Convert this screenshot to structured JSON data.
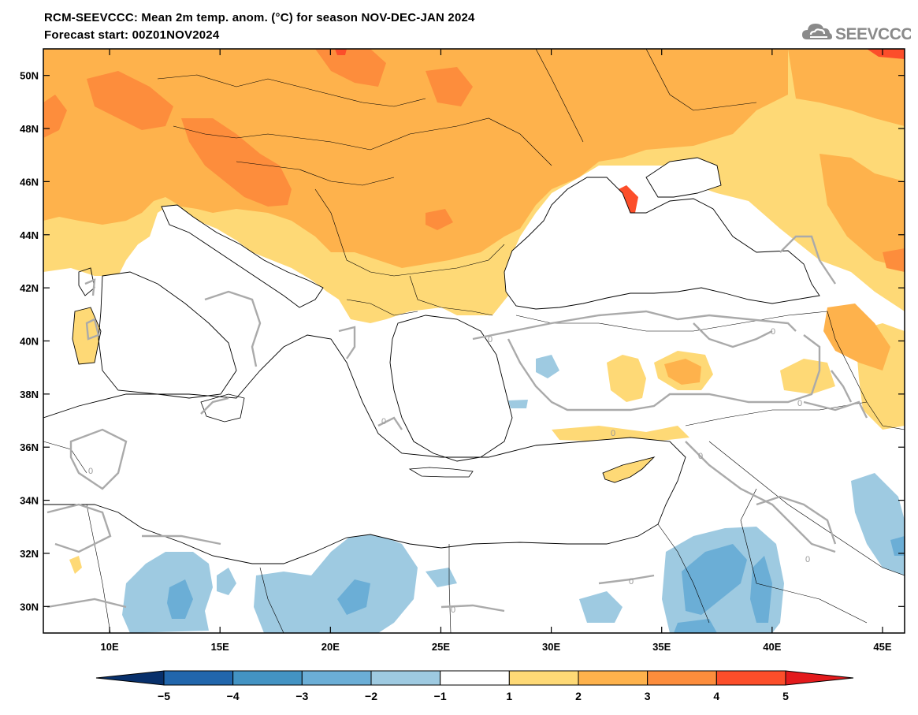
{
  "header": {
    "title_line1": "RCM-SEEVCCC: Mean 2m temp. anom. (°C) for season NOV-DEC-JAN 2024",
    "title_line2": "Forecast start: 00Z01NOV2024",
    "logo_text": "SEEVCCC",
    "logo_icon": "cloud-icon"
  },
  "map": {
    "lon_range": [
      7,
      46
    ],
    "lat_range": [
      29,
      51
    ],
    "lon_ticks": [
      {
        "v": 10,
        "label": "10E"
      },
      {
        "v": 15,
        "label": "15E"
      },
      {
        "v": 20,
        "label": "20E"
      },
      {
        "v": 25,
        "label": "25E"
      },
      {
        "v": 30,
        "label": "30E"
      },
      {
        "v": 35,
        "label": "35E"
      },
      {
        "v": 40,
        "label": "40E"
      },
      {
        "v": 45,
        "label": "45E"
      }
    ],
    "lat_ticks": [
      {
        "v": 30,
        "label": "30N"
      },
      {
        "v": 32,
        "label": "32N"
      },
      {
        "v": 34,
        "label": "34N"
      },
      {
        "v": 36,
        "label": "36N"
      },
      {
        "v": 38,
        "label": "38N"
      },
      {
        "v": 40,
        "label": "40N"
      },
      {
        "v": 42,
        "label": "42N"
      },
      {
        "v": 44,
        "label": "44N"
      },
      {
        "v": 46,
        "label": "46N"
      },
      {
        "v": 48,
        "label": "48N"
      },
      {
        "v": 50,
        "label": "50N"
      }
    ],
    "contour_label": "0"
  },
  "colorbar": {
    "labels": [
      "−5",
      "−4",
      "−3",
      "−2",
      "−1",
      "1",
      "2",
      "3",
      "4",
      "5"
    ],
    "colors": [
      "#08306b",
      "#2166ac",
      "#4393c3",
      "#6baed6",
      "#9ecae1",
      "#ffffff",
      "#fed976",
      "#feb24c",
      "#fd8d3c",
      "#fc4e2a",
      "#e31a1c"
    ]
  }
}
